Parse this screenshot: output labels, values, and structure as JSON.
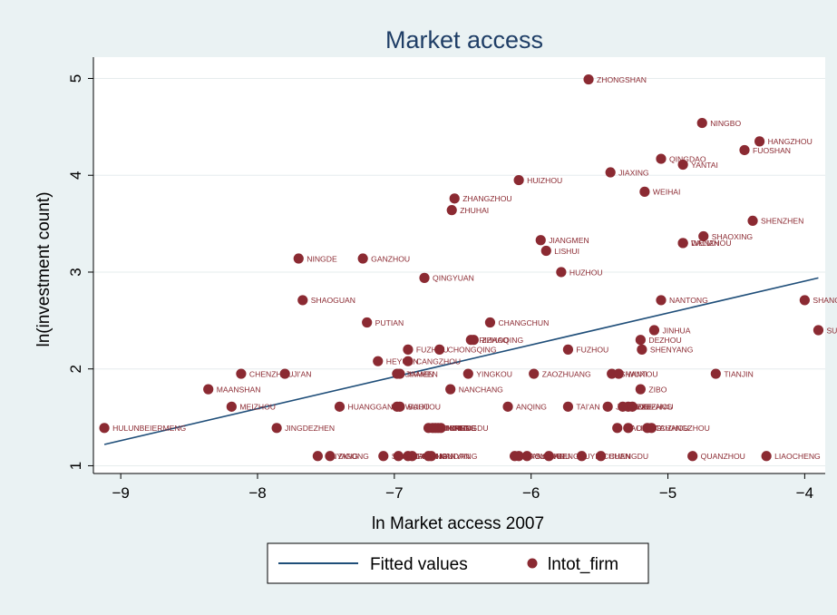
{
  "chart_data": {
    "type": "scatter",
    "title": "Market access",
    "xlabel": "ln Market access 2007",
    "ylabel": "ln(investment count)",
    "xlim": [
      -9.2,
      -3.85
    ],
    "ylim": [
      0.92,
      5.22
    ],
    "xticks": [
      -9,
      -8,
      -7,
      -6,
      -5,
      -4
    ],
    "yticks": [
      1,
      2,
      3,
      4,
      5
    ],
    "grid": "horizontal",
    "legend_position": "bottom",
    "colors": {
      "points": "#8b2a32",
      "line": "#1f4e79",
      "title": "#1f3e66"
    },
    "legend": [
      {
        "label": "Fitted values",
        "kind": "line"
      },
      {
        "label": "lntot_firm",
        "kind": "marker"
      }
    ],
    "fitted_line": {
      "name": "Fitted values",
      "x": [
        -9.12,
        -3.9
      ],
      "y": [
        1.22,
        2.94
      ]
    },
    "series": [
      {
        "name": "lntot_firm",
        "points": [
          {
            "x": -5.58,
            "y": 4.99,
            "label": "ZHONGSHAN"
          },
          {
            "x": -4.75,
            "y": 4.54,
            "label": "NINGBO"
          },
          {
            "x": -4.33,
            "y": 4.35,
            "label": "HANGZHOU"
          },
          {
            "x": -4.44,
            "y": 4.26,
            "label": "FUOSHAN"
          },
          {
            "x": -5.05,
            "y": 4.17,
            "label": "QINGDAO"
          },
          {
            "x": -4.89,
            "y": 4.11,
            "label": "YANTAI"
          },
          {
            "x": -5.42,
            "y": 4.03,
            "label": "JIAXING"
          },
          {
            "x": -6.09,
            "y": 3.95,
            "label": "HUIZHOU"
          },
          {
            "x": -5.17,
            "y": 3.83,
            "label": "WEIHAI"
          },
          {
            "x": -6.56,
            "y": 3.76,
            "label": "ZHANGZHOU"
          },
          {
            "x": -6.58,
            "y": 3.64,
            "label": "ZHUHAI"
          },
          {
            "x": -4.38,
            "y": 3.53,
            "label": "SHENZHEN"
          },
          {
            "x": -5.93,
            "y": 3.33,
            "label": "JIANGMEN"
          },
          {
            "x": -4.74,
            "y": 3.37,
            "label": "SHAOXING"
          },
          {
            "x": -4.89,
            "y": 3.3,
            "label": "DALIAN"
          },
          {
            "x": -4.89,
            "y": 3.3,
            "label": "WENZHOU"
          },
          {
            "x": -5.89,
            "y": 3.22,
            "label": "LISHUI"
          },
          {
            "x": -7.7,
            "y": 3.14,
            "label": "NINGDE"
          },
          {
            "x": -7.23,
            "y": 3.14,
            "label": "GANZHOU"
          },
          {
            "x": -5.78,
            "y": 3.0,
            "label": "HUZHOU"
          },
          {
            "x": -6.78,
            "y": 2.94,
            "label": "QINGYUAN"
          },
          {
            "x": -7.67,
            "y": 2.71,
            "label": "SHAOGUAN"
          },
          {
            "x": -5.05,
            "y": 2.71,
            "label": "NANTONG"
          },
          {
            "x": -4.0,
            "y": 2.71,
            "label": "SHANGHAI"
          },
          {
            "x": -7.2,
            "y": 2.48,
            "label": "PUTIAN"
          },
          {
            "x": -6.3,
            "y": 2.48,
            "label": "CHANGCHUN"
          },
          {
            "x": -5.1,
            "y": 2.4,
            "label": "JINHUA"
          },
          {
            "x": -3.9,
            "y": 2.4,
            "label": "SUZHOU"
          },
          {
            "x": -6.44,
            "y": 2.3,
            "label": "RIZHAO"
          },
          {
            "x": -6.42,
            "y": 2.3,
            "label": "ZHAOQING"
          },
          {
            "x": -5.2,
            "y": 2.3,
            "label": "DEZHOU"
          },
          {
            "x": -6.9,
            "y": 2.2,
            "label": "FUZHOU"
          },
          {
            "x": -6.67,
            "y": 2.2,
            "label": "CHONGQING"
          },
          {
            "x": -5.73,
            "y": 2.2,
            "label": "FUZHOU"
          },
          {
            "x": -5.19,
            "y": 2.2,
            "label": "SHENYANG"
          },
          {
            "x": -7.12,
            "y": 2.08,
            "label": "HEYUAN"
          },
          {
            "x": -6.9,
            "y": 2.08,
            "label": "CANGZHOU"
          },
          {
            "x": -8.12,
            "y": 1.95,
            "label": "CHENZHOU"
          },
          {
            "x": -7.8,
            "y": 1.95,
            "label": "JI'AN"
          },
          {
            "x": -6.98,
            "y": 1.95,
            "label": "JIAMEN"
          },
          {
            "x": -6.96,
            "y": 1.95,
            "label": "XIAMEN"
          },
          {
            "x": -6.46,
            "y": 1.95,
            "label": "YINGKOU"
          },
          {
            "x": -5.98,
            "y": 1.95,
            "label": "ZAOZHUANG"
          },
          {
            "x": -5.41,
            "y": 1.95,
            "label": "SHANTOU"
          },
          {
            "x": -5.36,
            "y": 1.95,
            "label": "WUXI"
          },
          {
            "x": -4.65,
            "y": 1.95,
            "label": "TIANJIN"
          },
          {
            "x": -8.36,
            "y": 1.79,
            "label": "MAANSHAN"
          },
          {
            "x": -6.59,
            "y": 1.79,
            "label": "NANCHANG"
          },
          {
            "x": -5.2,
            "y": 1.79,
            "label": "ZIBO"
          },
          {
            "x": -8.19,
            "y": 1.61,
            "label": "MEIZHOU"
          },
          {
            "x": -7.4,
            "y": 1.61,
            "label": "HUANGGANG"
          },
          {
            "x": -6.98,
            "y": 1.61,
            "label": "WUHU"
          },
          {
            "x": -6.96,
            "y": 1.61,
            "label": "BAOTOU"
          },
          {
            "x": -6.17,
            "y": 1.61,
            "label": "ANQING"
          },
          {
            "x": -5.73,
            "y": 1.61,
            "label": "TAI'AN"
          },
          {
            "x": -5.44,
            "y": 1.61,
            "label": "JINZHOU"
          },
          {
            "x": -5.33,
            "y": 1.61,
            "label": "HEZE"
          },
          {
            "x": -5.29,
            "y": 1.61,
            "label": "WEIFANG"
          },
          {
            "x": -5.26,
            "y": 1.61,
            "label": "XUZHOU"
          },
          {
            "x": -9.12,
            "y": 1.39,
            "label": "HULUNBEIERMENG"
          },
          {
            "x": -7.86,
            "y": 1.39,
            "label": "JINGDEZHEN"
          },
          {
            "x": -6.75,
            "y": 1.39,
            "label": "SHIYAN"
          },
          {
            "x": -6.72,
            "y": 1.39,
            "label": "CHIFENG"
          },
          {
            "x": -6.7,
            "y": 1.39,
            "label": "JINING"
          },
          {
            "x": -6.68,
            "y": 1.39,
            "label": "NINGDE"
          },
          {
            "x": -6.66,
            "y": 1.39,
            "label": "CHENGDU"
          },
          {
            "x": -5.37,
            "y": 1.39,
            "label": "BAODING"
          },
          {
            "x": -5.29,
            "y": 1.39,
            "label": "LINYI"
          },
          {
            "x": -5.15,
            "y": 1.39,
            "label": "TAIZHOU"
          },
          {
            "x": -5.12,
            "y": 1.39,
            "label": "CHANGZHOU"
          },
          {
            "x": -7.56,
            "y": 1.1,
            "label": "ANYANG"
          },
          {
            "x": -7.47,
            "y": 1.1,
            "label": "ZIGONG"
          },
          {
            "x": -7.08,
            "y": 1.1,
            "label": "SHAOYANG"
          },
          {
            "x": -6.97,
            "y": 1.1,
            "label": "HEFEI"
          },
          {
            "x": -6.9,
            "y": 1.1,
            "label": "LANZHOU"
          },
          {
            "x": -6.87,
            "y": 1.1,
            "label": "XINING"
          },
          {
            "x": -6.75,
            "y": 1.1,
            "label": "HANDAN"
          },
          {
            "x": -6.73,
            "y": 1.1,
            "label": "NANYANG"
          },
          {
            "x": -6.12,
            "y": 1.1,
            "label": "LIAOYANG"
          },
          {
            "x": -6.09,
            "y": 1.1,
            "label": "YANGZHOU"
          },
          {
            "x": -6.03,
            "y": 1.1,
            "label": "SUQIAN"
          },
          {
            "x": -5.87,
            "y": 1.1,
            "label": "BENGBU"
          },
          {
            "x": -5.63,
            "y": 1.1,
            "label": "YINCHUAN"
          },
          {
            "x": -5.49,
            "y": 1.1,
            "label": "CHENGDU"
          },
          {
            "x": -4.82,
            "y": 1.1,
            "label": "QUANZHOU"
          },
          {
            "x": -4.28,
            "y": 1.1,
            "label": "LIAOCHENG"
          }
        ]
      }
    ]
  }
}
